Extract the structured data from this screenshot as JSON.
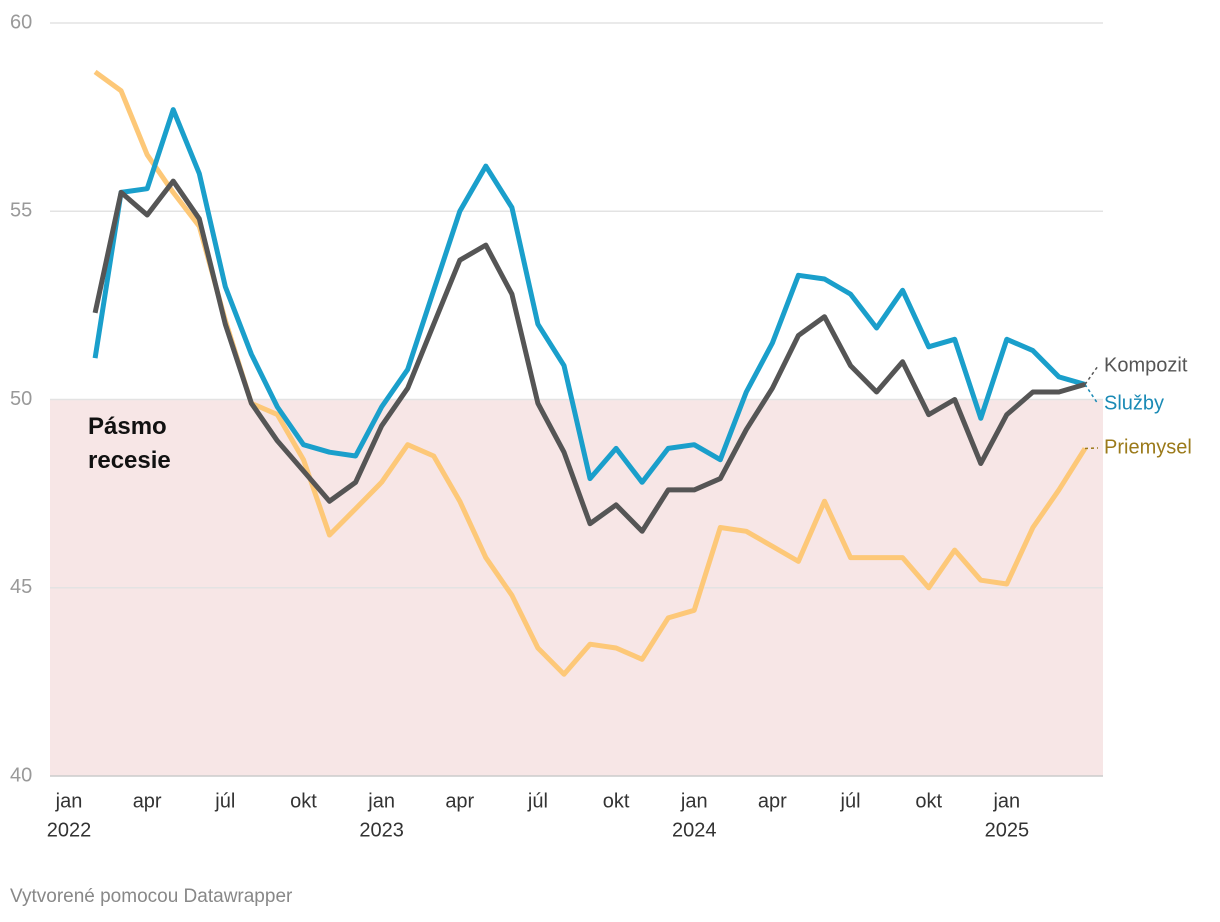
{
  "chart_data": {
    "type": "line",
    "x": [
      "2022-02",
      "2022-03",
      "2022-04",
      "2022-05",
      "2022-06",
      "2022-07",
      "2022-08",
      "2022-09",
      "2022-10",
      "2022-11",
      "2022-12",
      "2023-01",
      "2023-02",
      "2023-03",
      "2023-04",
      "2023-05",
      "2023-06",
      "2023-07",
      "2023-08",
      "2023-09",
      "2023-10",
      "2023-11",
      "2023-12",
      "2024-01",
      "2024-02",
      "2024-03",
      "2024-04",
      "2024-05",
      "2024-06",
      "2024-07",
      "2024-08",
      "2024-09",
      "2024-10",
      "2024-11",
      "2024-12",
      "2025-01",
      "2025-02",
      "2025-03",
      "2025-04"
    ],
    "xlim": [
      "2022-01",
      "2025-04"
    ],
    "xticks": [
      {
        "value": "2022-01",
        "label": "jan"
      },
      {
        "value": "2022-04",
        "label": "apr"
      },
      {
        "value": "2022-07",
        "label": "júl"
      },
      {
        "value": "2022-10",
        "label": "okt"
      },
      {
        "value": "2023-01",
        "label": "jan"
      },
      {
        "value": "2023-04",
        "label": "apr"
      },
      {
        "value": "2023-07",
        "label": "júl"
      },
      {
        "value": "2023-10",
        "label": "okt"
      },
      {
        "value": "2024-01",
        "label": "jan"
      },
      {
        "value": "2024-04",
        "label": "apr"
      },
      {
        "value": "2024-07",
        "label": "júl"
      },
      {
        "value": "2024-10",
        "label": "okt"
      },
      {
        "value": "2025-01",
        "label": "jan"
      }
    ],
    "xtick_years": [
      {
        "value": "2022-01",
        "label": "2022"
      },
      {
        "value": "2023-01",
        "label": "2023"
      },
      {
        "value": "2024-01",
        "label": "2024"
      },
      {
        "value": "2025-01",
        "label": "2025"
      }
    ],
    "ylim": [
      40,
      60
    ],
    "yticks": [
      40,
      45,
      50,
      55,
      60
    ],
    "grid": true,
    "band": {
      "from": 40,
      "to": 50,
      "label": "Pásmo recesie",
      "color": "#f7e6e6"
    },
    "series": [
      {
        "name": "Priemysel",
        "color": "#fdc878",
        "label_color": "#9b7a1a",
        "values": [
          58.7,
          58.2,
          56.5,
          55.5,
          54.6,
          52.1,
          49.9,
          49.6,
          48.4,
          46.4,
          47.1,
          47.8,
          48.8,
          48.5,
          47.3,
          45.8,
          44.8,
          43.4,
          42.7,
          43.5,
          43.4,
          43.1,
          44.2,
          44.4,
          46.6,
          46.5,
          46.1,
          45.7,
          47.3,
          45.8,
          45.8,
          45.8,
          45.0,
          46.0,
          45.2,
          45.1,
          46.6,
          47.6,
          48.7
        ]
      },
      {
        "name": "Služby",
        "color": "#1a9fcb",
        "label_color": "#1a8ab5",
        "values": [
          51.1,
          55.5,
          55.6,
          57.7,
          56.0,
          53.0,
          51.2,
          49.8,
          48.8,
          48.6,
          48.5,
          49.8,
          50.8,
          52.9,
          55.0,
          56.2,
          55.1,
          52.0,
          50.9,
          47.9,
          48.7,
          47.8,
          48.7,
          48.8,
          48.4,
          50.2,
          51.5,
          53.3,
          53.2,
          52.8,
          51.9,
          52.9,
          51.4,
          51.6,
          49.5,
          51.6,
          51.3,
          50.6,
          50.4
        ]
      },
      {
        "name": "Kompozit",
        "color": "#555555",
        "label_color": "#555555",
        "values": [
          52.3,
          55.5,
          54.9,
          55.8,
          54.8,
          52.0,
          49.9,
          48.9,
          48.1,
          47.3,
          47.8,
          49.3,
          50.3,
          52.0,
          53.7,
          54.1,
          52.8,
          49.9,
          48.6,
          46.7,
          47.2,
          46.5,
          47.6,
          47.6,
          47.9,
          49.2,
          50.3,
          51.7,
          52.2,
          50.9,
          50.2,
          51.0,
          49.6,
          50.0,
          48.3,
          49.6,
          50.2,
          50.2,
          50.4
        ]
      }
    ],
    "credit": "Vytvorené pomocou Datawrapper"
  }
}
